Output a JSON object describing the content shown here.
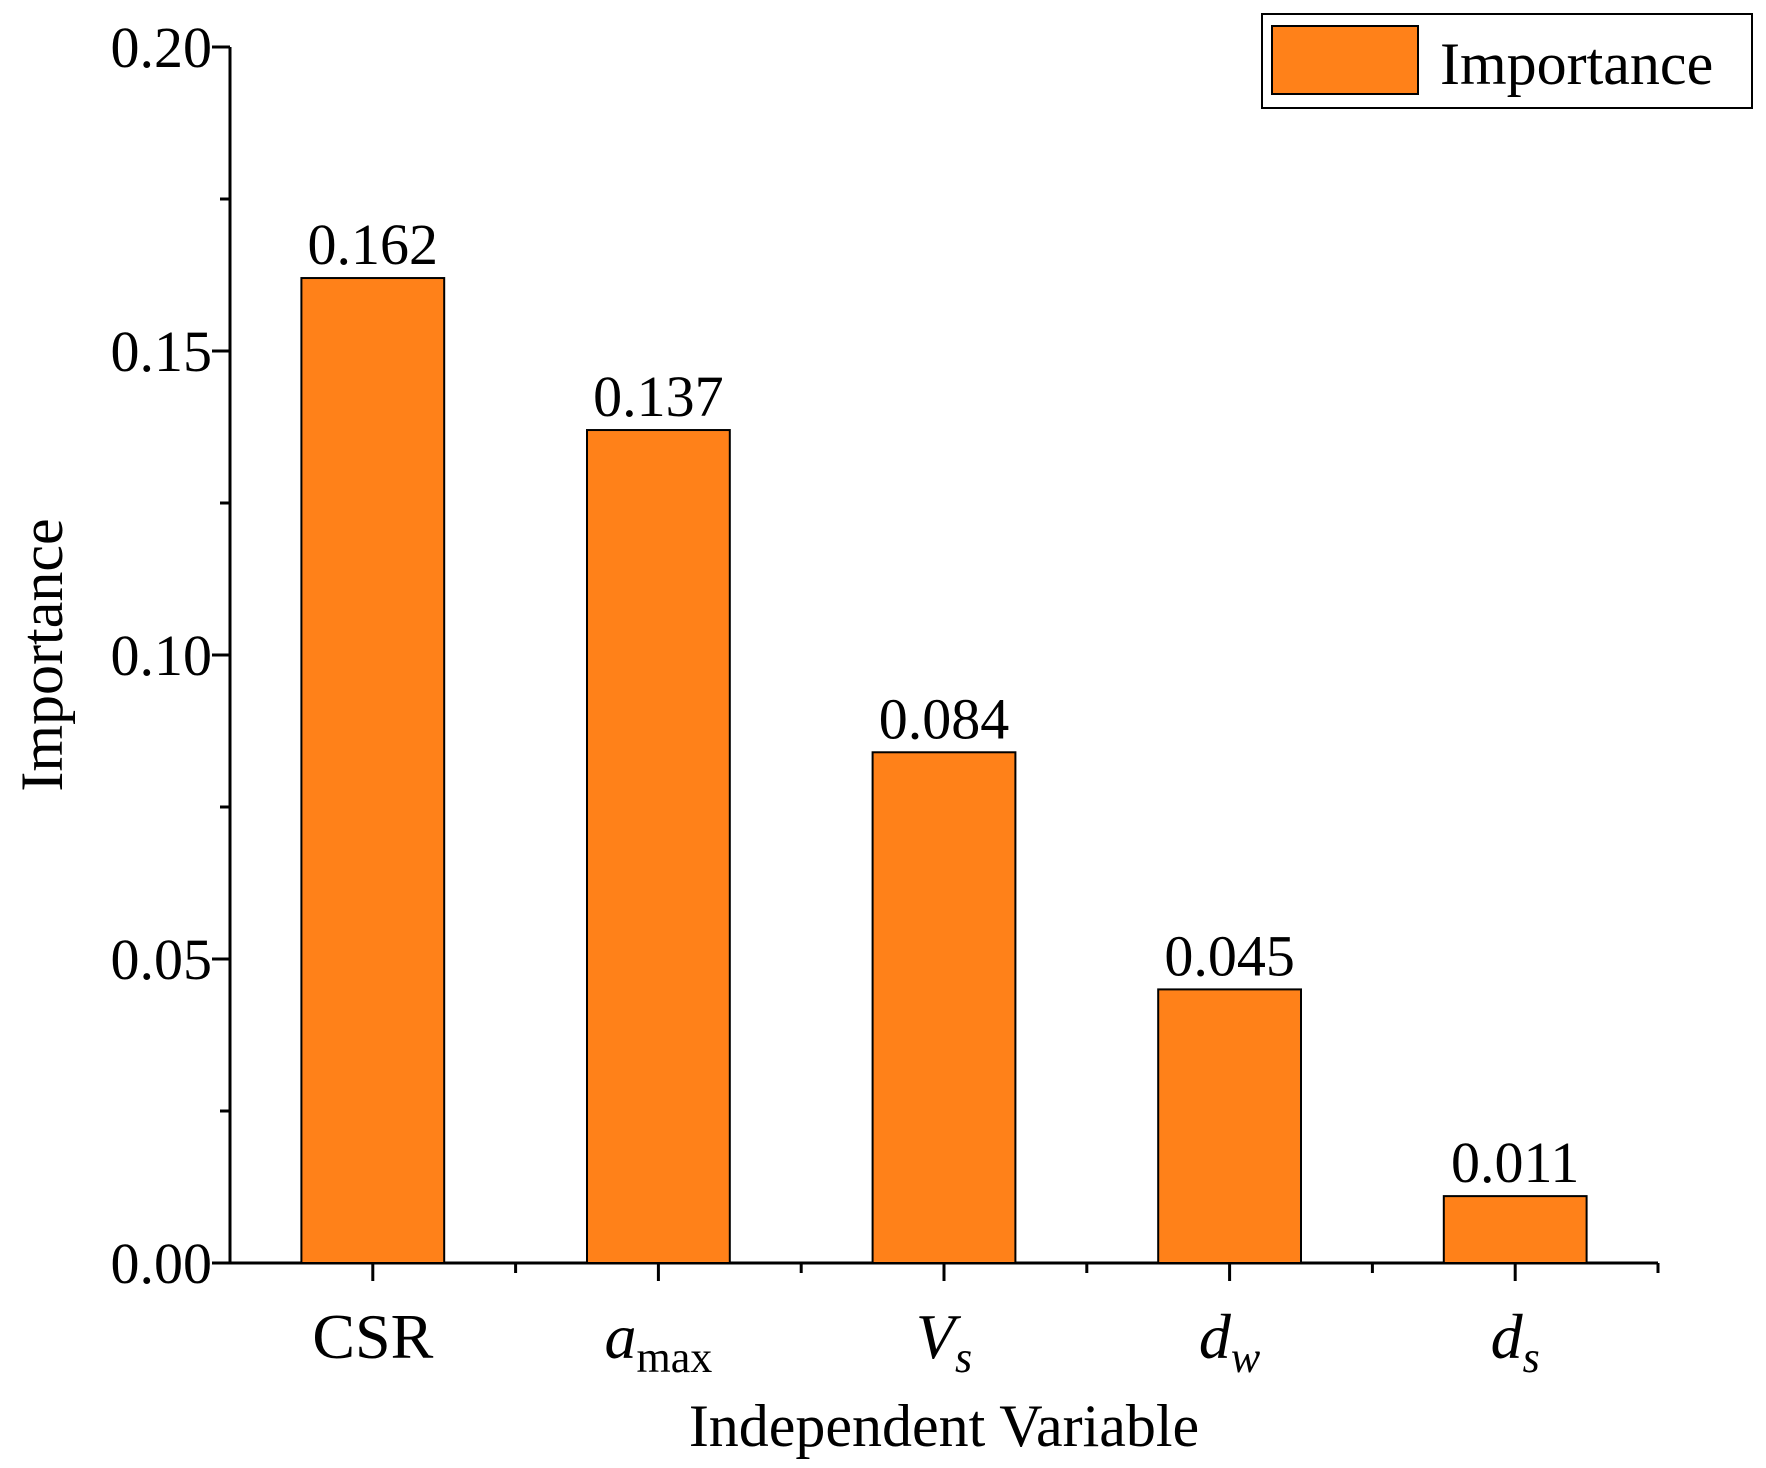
{
  "chart_data": {
    "type": "bar",
    "title": "",
    "xlabel": "Independent Variable",
    "ylabel": "Importance",
    "ylim": [
      0,
      0.2
    ],
    "yticks": [
      "0.00",
      "0.05",
      "0.10",
      "0.15",
      "0.20"
    ],
    "categories": [
      {
        "main": "CSR",
        "sub": "",
        "italic": false
      },
      {
        "main": "a",
        "sub": "max",
        "italic": true,
        "sub_italic": false
      },
      {
        "main": "V",
        "sub": "s",
        "italic": true,
        "sub_italic": true
      },
      {
        "main": "d",
        "sub": "w",
        "italic": true,
        "sub_italic": true
      },
      {
        "main": "d",
        "sub": "s",
        "italic": true,
        "sub_italic": true
      }
    ],
    "series": [
      {
        "name": "Importance",
        "values": [
          0.162,
          0.137,
          0.084,
          0.045,
          0.011
        ],
        "labels": [
          "0.162",
          "0.137",
          "0.084",
          "0.045",
          "0.011"
        ]
      }
    ],
    "legend": "top-right",
    "colors": {
      "bar": "#ff8119",
      "stroke": "#000000"
    }
  }
}
